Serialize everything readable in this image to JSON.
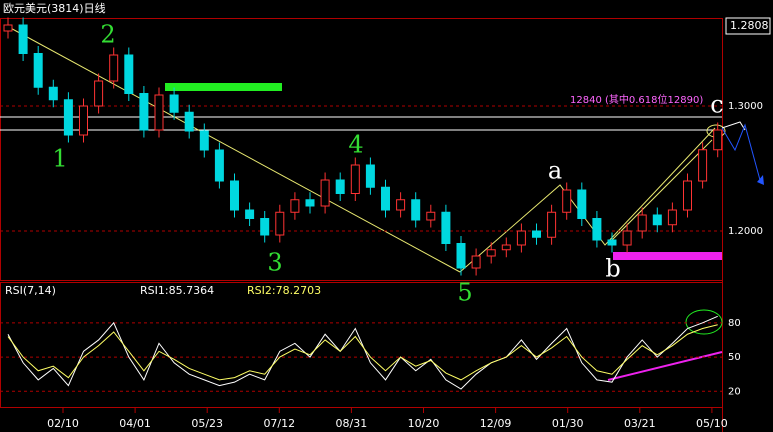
{
  "chart_data": [
    {
      "type": "candlestick",
      "title": "欧元美元(3814)日线",
      "price_label": "1.2808",
      "annotation": "12840 (其中0.618位12890)",
      "wave_labels": [
        "1",
        "2",
        "3",
        "4",
        "5",
        "a",
        "b",
        "c"
      ],
      "up_color": "#ff3333",
      "down_color": "#00d8e0",
      "open": [
        1.36,
        1.3648,
        1.342,
        1.315,
        1.305,
        1.2768,
        1.3,
        1.32,
        1.3408,
        1.31,
        1.2808,
        1.3088,
        1.295,
        1.28,
        1.2648,
        1.24,
        1.2168,
        1.21,
        1.1968,
        1.215,
        1.225,
        1.22,
        1.2408,
        1.23,
        1.2528,
        1.235,
        1.2168,
        1.225,
        1.2088,
        1.215,
        1.19,
        1.1704,
        1.18,
        1.185,
        1.1888,
        1.2,
        1.195,
        1.215,
        1.2328,
        1.21,
        1.1928,
        1.1888,
        1.2,
        1.2128,
        1.205,
        1.2168,
        1.24,
        1.265
      ],
      "high": [
        1.3708,
        1.3708,
        1.348,
        1.321,
        1.311,
        1.306,
        1.326,
        1.3468,
        1.3468,
        1.316,
        1.3148,
        1.3148,
        1.301,
        1.286,
        1.2708,
        1.246,
        1.2228,
        1.216,
        1.221,
        1.231,
        1.231,
        1.2468,
        1.2468,
        1.2588,
        1.2588,
        1.241,
        1.231,
        1.231,
        1.221,
        1.221,
        1.196,
        1.186,
        1.191,
        1.1948,
        1.206,
        1.206,
        1.221,
        1.2388,
        1.2388,
        1.216,
        1.1988,
        1.206,
        1.2188,
        1.2188,
        1.2228,
        1.246,
        1.271,
        1.2868
      ],
      "low": [
        1.354,
        1.336,
        1.309,
        1.299,
        1.2708,
        1.2708,
        1.294,
        1.314,
        1.304,
        1.2748,
        1.2748,
        1.289,
        1.274,
        1.2588,
        1.234,
        1.2108,
        1.204,
        1.1908,
        1.1908,
        1.209,
        1.214,
        1.214,
        1.224,
        1.224,
        1.229,
        1.2108,
        1.2108,
        1.2028,
        1.2028,
        1.184,
        1.1644,
        1.1644,
        1.174,
        1.179,
        1.1828,
        1.189,
        1.189,
        1.209,
        1.204,
        1.1868,
        1.1828,
        1.1828,
        1.194,
        1.199,
        1.199,
        1.2108,
        1.234,
        1.259
      ],
      "close": [
        1.3648,
        1.342,
        1.315,
        1.305,
        1.2768,
        1.3,
        1.32,
        1.3408,
        1.31,
        1.2808,
        1.3088,
        1.295,
        1.28,
        1.2648,
        1.24,
        1.2168,
        1.21,
        1.1968,
        1.215,
        1.225,
        1.22,
        1.2408,
        1.23,
        1.2528,
        1.235,
        1.2168,
        1.225,
        1.2088,
        1.215,
        1.19,
        1.1704,
        1.18,
        1.185,
        1.1888,
        1.2,
        1.195,
        1.215,
        1.2328,
        1.21,
        1.1928,
        1.1888,
        1.2,
        1.2128,
        1.205,
        1.2168,
        1.24,
        1.265,
        1.2808
      ],
      "ylim": [
        1.1608,
        1.3704
      ],
      "yticks": [
        {
          "value": 1.3,
          "label": "1.3000"
        },
        {
          "value": 1.2,
          "label": "1.2000"
        }
      ],
      "x_tick_labels": [
        "02/10",
        "04/01",
        "05/23",
        "07/12",
        "08/31",
        "10/20",
        "12/09",
        "01/30",
        "03/21",
        "05/10"
      ]
    },
    {
      "type": "line",
      "title": "RSI(7,14)",
      "ylim": [
        8,
        100
      ],
      "yticks": [
        80,
        50,
        20
      ],
      "series": [
        {
          "label": "RSI1:85.7364",
          "color": "#ffffff",
          "values": [
            70,
            45,
            30,
            40,
            25,
            55,
            65,
            80,
            50,
            30,
            62,
            45,
            35,
            30,
            25,
            28,
            35,
            30,
            55,
            62,
            50,
            70,
            55,
            75,
            45,
            30,
            50,
            38,
            48,
            30,
            22,
            35,
            45,
            50,
            65,
            48,
            62,
            75,
            45,
            30,
            28,
            50,
            65,
            50,
            62,
            75,
            80,
            85.7
          ]
        },
        {
          "label": "RSI2:78.2703",
          "color": "#ffff66",
          "values": [
            68,
            50,
            38,
            42,
            32,
            50,
            60,
            72,
            55,
            38,
            55,
            48,
            40,
            35,
            30,
            32,
            38,
            35,
            50,
            57,
            52,
            65,
            55,
            68,
            50,
            38,
            50,
            42,
            47,
            36,
            30,
            38,
            45,
            50,
            60,
            50,
            58,
            68,
            50,
            38,
            35,
            48,
            60,
            52,
            60,
            70,
            75,
            78.3
          ]
        }
      ]
    }
  ]
}
